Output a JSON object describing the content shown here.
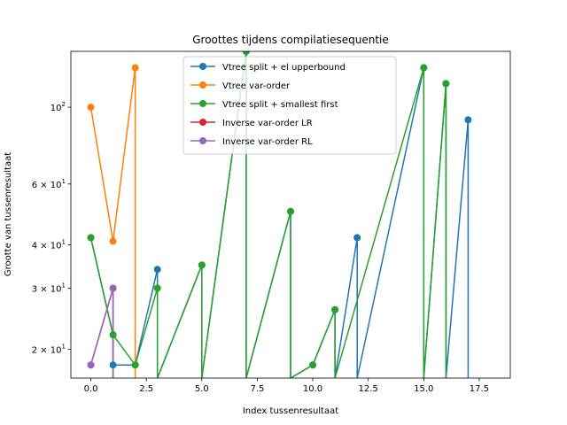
{
  "chart_data": {
    "type": "line",
    "title": "Groottes tijdens compilatiesequentie",
    "xlabel": "Index tussenresultaat",
    "ylabel": "Grootte van tussenresultaat",
    "xlim": [
      -0.9,
      18.9
    ],
    "ylim": [
      16.5,
      145
    ],
    "yscale": "log",
    "grid": false,
    "legend_position": "upper center",
    "x_ticks": [
      {
        "value": 0,
        "label": "0.0"
      },
      {
        "value": 2.5,
        "label": "2.5"
      },
      {
        "value": 5,
        "label": "5.0"
      },
      {
        "value": 7.5,
        "label": "7.5"
      },
      {
        "value": 10,
        "label": "10.0"
      },
      {
        "value": 12.5,
        "label": "12.5"
      },
      {
        "value": 15,
        "label": "15.0"
      },
      {
        "value": 17.5,
        "label": "17.5"
      }
    ],
    "y_ticks": [
      {
        "value": 20,
        "base": "2 × 10",
        "exp": "1"
      },
      {
        "value": 30,
        "base": "3 × 10",
        "exp": "1"
      },
      {
        "value": 40,
        "base": "4 × 10",
        "exp": "1"
      },
      {
        "value": 60,
        "base": "6 × 10",
        "exp": "1"
      },
      {
        "value": 100,
        "base": "10",
        "exp": "2"
      }
    ],
    "series": [
      {
        "name": "Vtree split + el upperbound",
        "color": "#1f77b4",
        "x": [
          0,
          1,
          1,
          2,
          3,
          3,
          5,
          5,
          7,
          7,
          9,
          9,
          10,
          11,
          11,
          12,
          12,
          15,
          15,
          16,
          16,
          17,
          17
        ],
        "y": [
          42,
          22,
          18,
          18,
          34,
          16.5,
          35,
          16.5,
          145,
          16.5,
          50,
          16.5,
          18,
          26,
          16.5,
          42,
          16.5,
          130,
          16.5,
          117,
          16.5,
          92,
          16.5
        ]
      },
      {
        "name": "Vtree var-order",
        "color": "#ff7f0e",
        "x": [
          0,
          1,
          2,
          2
        ],
        "y": [
          100,
          41,
          130,
          16.5
        ]
      },
      {
        "name": "Vtree split + smallest first",
        "color": "#2ca02c",
        "x": [
          0,
          1,
          2,
          3,
          3,
          5,
          5,
          7,
          7,
          9,
          9,
          10,
          11,
          11,
          15,
          15,
          16,
          16
        ],
        "y": [
          42,
          22,
          18,
          30,
          16.5,
          35,
          16.5,
          145,
          16.5,
          50,
          16.5,
          18,
          26,
          16.5,
          130,
          16.5,
          117,
          16.5
        ]
      },
      {
        "name": "Inverse var-order LR",
        "color": "#d62728",
        "x": [
          0,
          1,
          1
        ],
        "y": [
          18,
          30,
          16.5
        ]
      },
      {
        "name": "Inverse var-order RL",
        "color": "#9467bd",
        "x": [
          0,
          1,
          1
        ],
        "y": [
          18,
          30,
          16.5
        ]
      }
    ]
  }
}
